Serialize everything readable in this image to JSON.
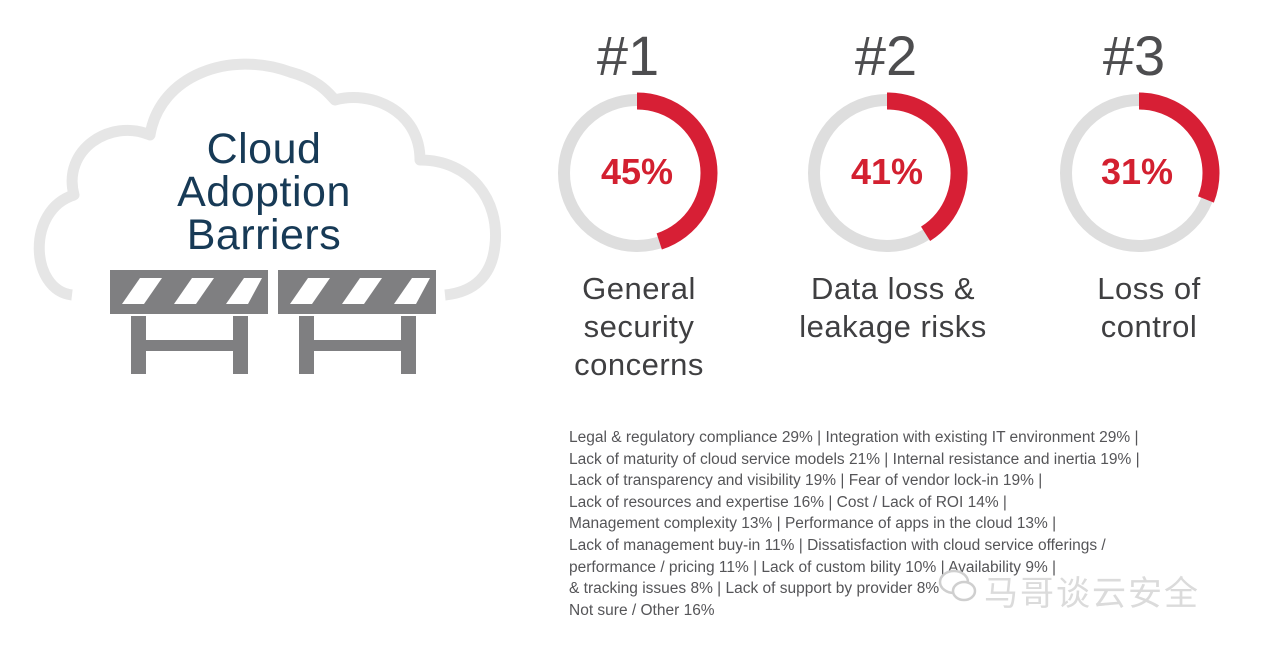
{
  "cloud": {
    "title_lines": [
      "Cloud",
      "Adoption",
      "Barriers"
    ]
  },
  "chart_data": {
    "type": "donut",
    "items": [
      {
        "rank": "#1",
        "value": 45,
        "value_label": "45%",
        "label_lines": [
          "General",
          "security",
          "concerns"
        ]
      },
      {
        "rank": "#2",
        "value": 41,
        "value_label": "41%",
        "label_lines": [
          "Data loss &",
          "leakage risks"
        ]
      },
      {
        "rank": "#3",
        "value": 31,
        "value_label": "31%",
        "label_lines": [
          "Loss of",
          "control"
        ]
      }
    ],
    "colors": {
      "fill": "#d71f35",
      "track": "#dedede",
      "value_text": "#d32030"
    }
  },
  "other_barriers": [
    "Legal & regulatory compliance 29%  |  Integration with existing IT environment 29%  |",
    "Lack of maturity of cloud service models 21%  |  Internal resistance and inertia 19%  |",
    "Lack of transparency and visibility 19%  |  Fear of vendor lock-in 19%  |",
    "Lack of resources and expertise 16%  |  Cost / Lack of ROI 14%  |",
    "Management complexity 13%  |  Performance of apps in the cloud 13%  |",
    "Lack of management buy-in 11%  |  Dissatisfaction with cloud service offerings /",
    "performance / pricing 11%  |  Lack of custom    bility 10%  |  Availability 9%  |",
    " & tracking issues 8%  |  Lack of support by      provider 8%",
    "Not sure / Other 16%"
  ],
  "watermark": {
    "text": "马哥谈云安全"
  }
}
